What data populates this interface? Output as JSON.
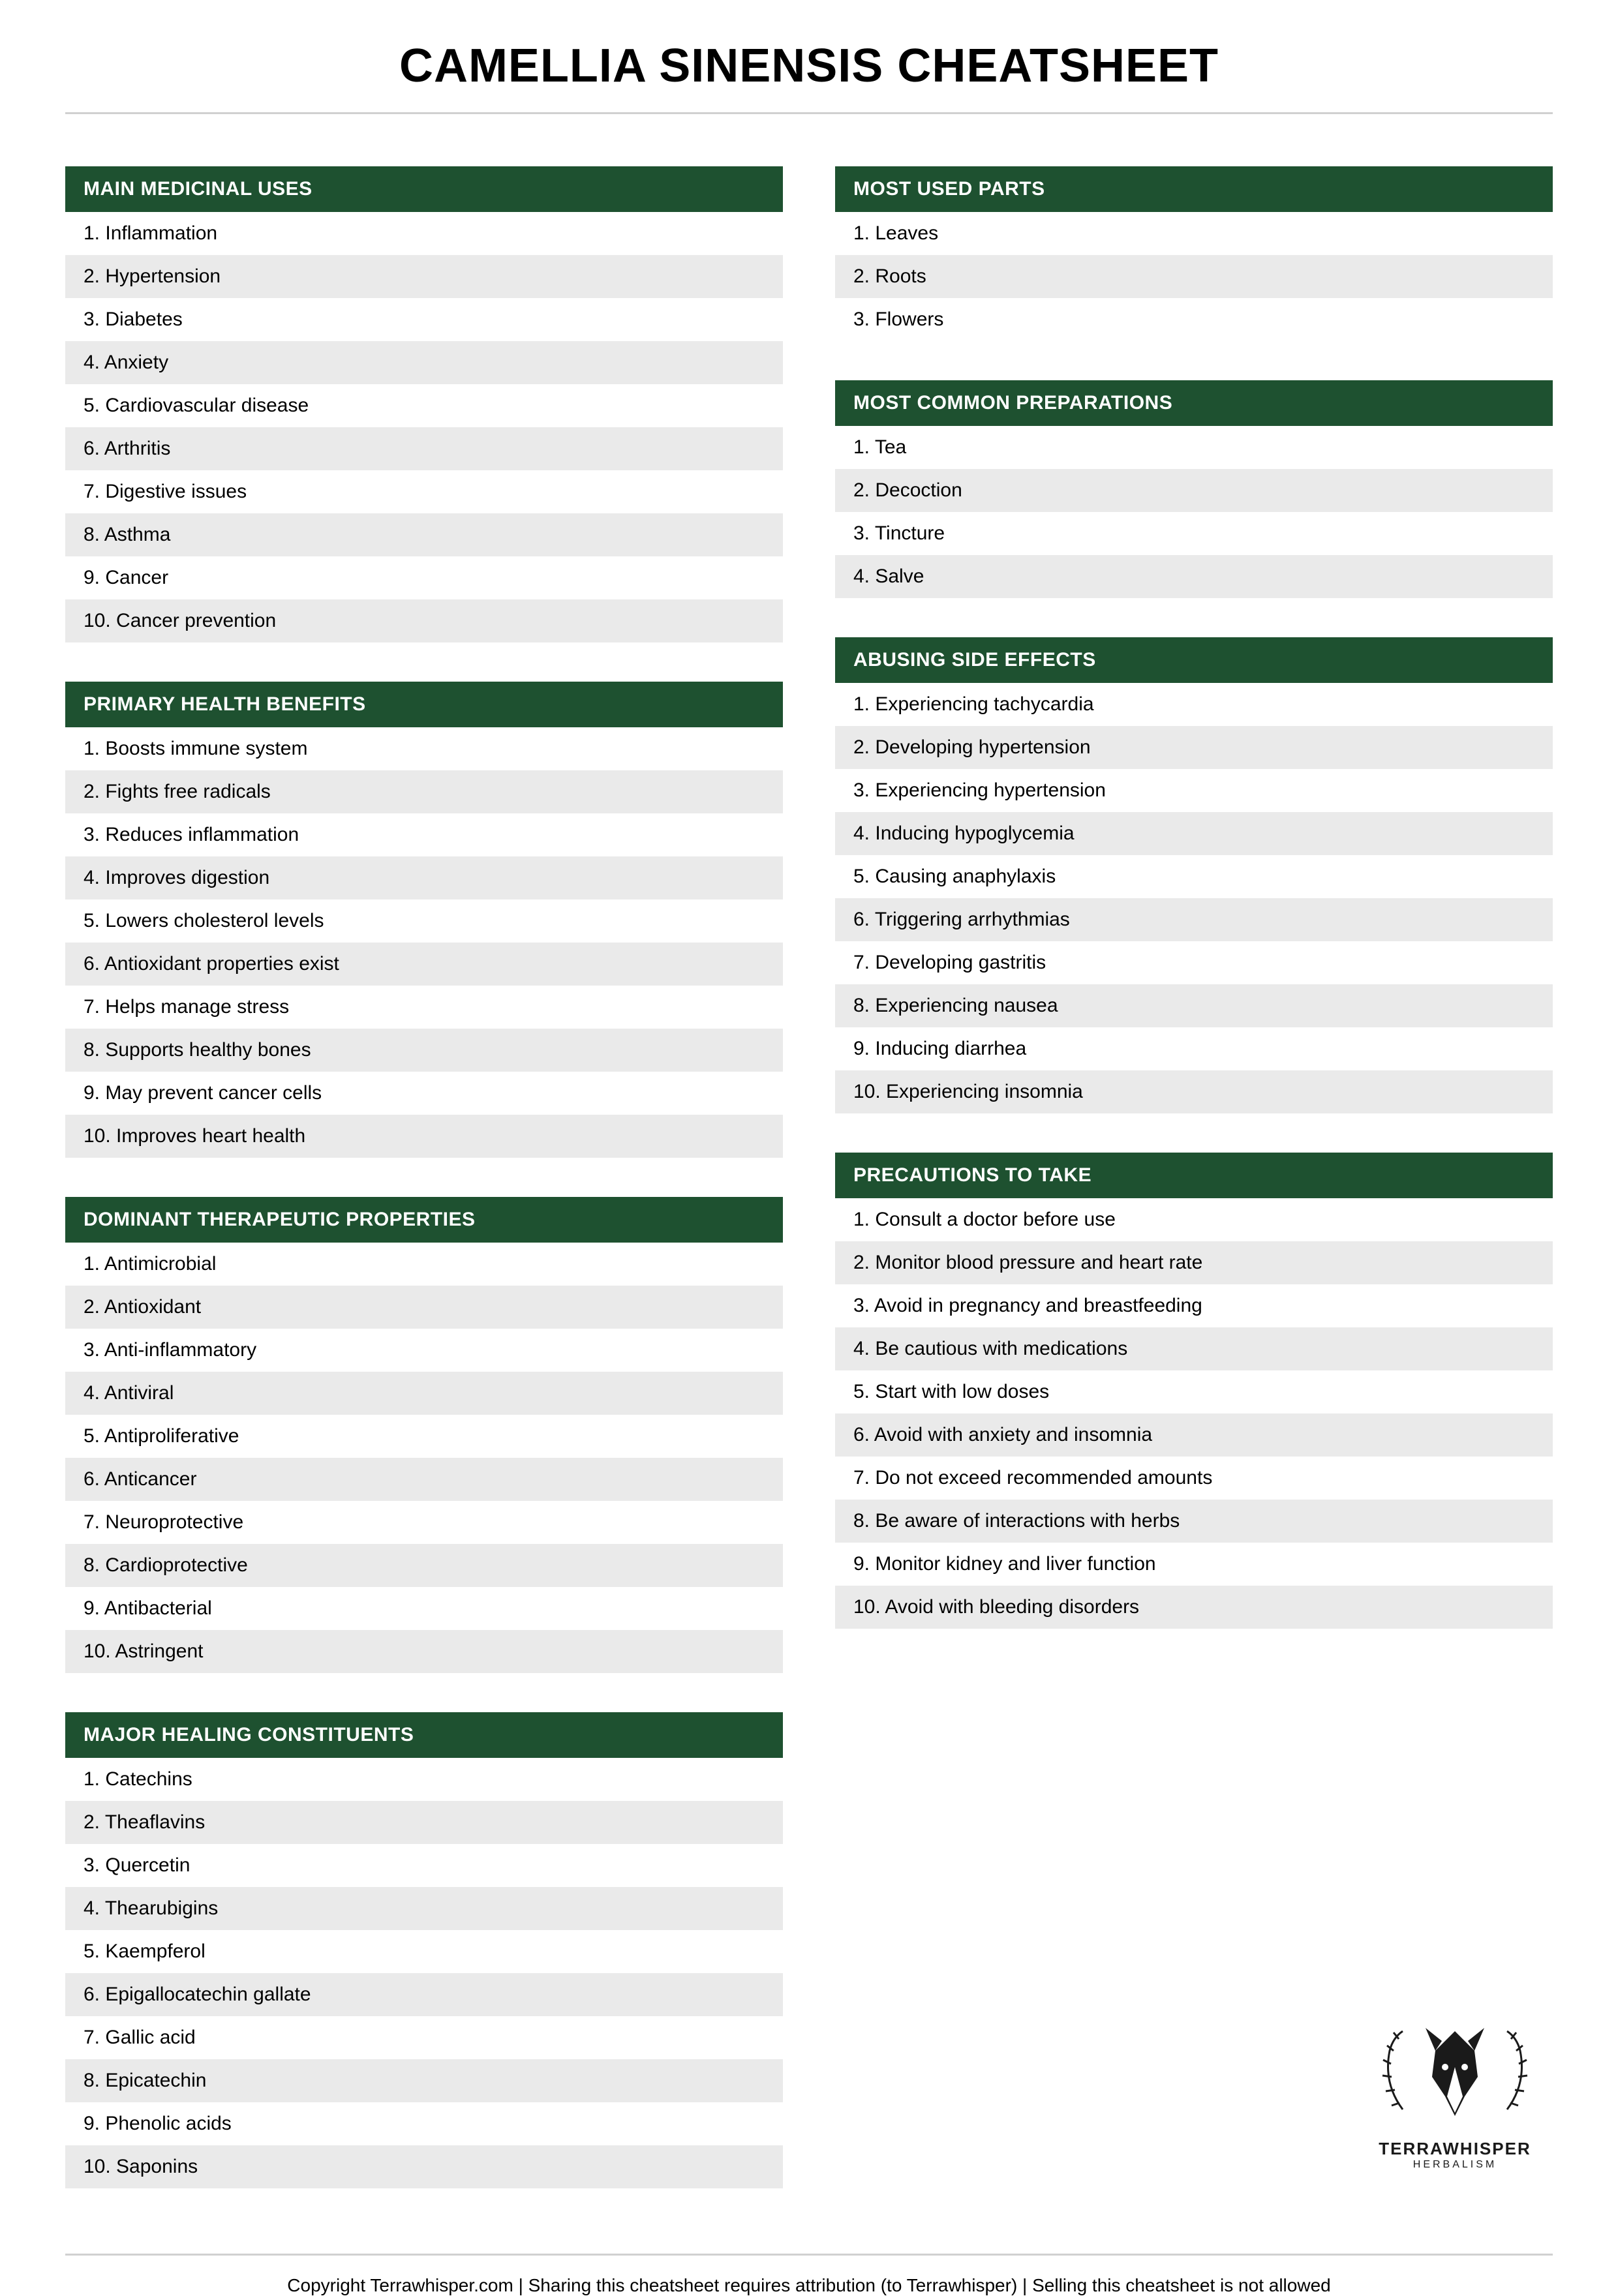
{
  "title": "CAMELLIA SINENSIS CHEATSHEET",
  "colors": {
    "header_bg": "#1e5130",
    "header_text": "#ffffff",
    "row_odd": "#ffffff",
    "row_even": "#eaeaea",
    "divider": "#d0d0d0"
  },
  "left_sections": [
    {
      "header": "MAIN MEDICINAL USES",
      "items": [
        "Inflammation",
        "Hypertension",
        "Diabetes",
        "Anxiety",
        "Cardiovascular disease",
        "Arthritis",
        "Digestive issues",
        "Asthma",
        "Cancer",
        "Cancer prevention"
      ]
    },
    {
      "header": "PRIMARY HEALTH BENEFITS",
      "items": [
        "Boosts immune system",
        "Fights free radicals",
        "Reduces inflammation",
        "Improves digestion",
        "Lowers cholesterol levels",
        "Antioxidant properties exist",
        "Helps manage stress",
        "Supports healthy bones",
        "May prevent cancer cells",
        "Improves heart health"
      ]
    },
    {
      "header": "DOMINANT THERAPEUTIC PROPERTIES",
      "items": [
        "Antimicrobial",
        "Antioxidant",
        "Anti-inflammatory",
        "Antiviral",
        "Antiproliferative",
        "Anticancer",
        "Neuroprotective",
        "Cardioprotective",
        "Antibacterial",
        "Astringent"
      ]
    },
    {
      "header": "MAJOR HEALING CONSTITUENTS",
      "items": [
        "Catechins",
        "Theaflavins",
        "Quercetin",
        "Thearubigins",
        "Kaempferol",
        "Epigallocatechin gallate",
        "Gallic acid",
        "Epicatechin",
        "Phenolic acids",
        "Saponins"
      ]
    }
  ],
  "right_sections": [
    {
      "header": "MOST USED PARTS",
      "items": [
        "Leaves",
        "Roots",
        "Flowers"
      ]
    },
    {
      "header": "MOST COMMON PREPARATIONS",
      "items": [
        "Tea",
        "Decoction",
        "Tincture",
        "Salve"
      ]
    },
    {
      "header": "ABUSING SIDE EFFECTS",
      "items": [
        "Experiencing tachycardia",
        "Developing hypertension",
        "Experiencing hypertension",
        "Inducing hypoglycemia",
        "Causing anaphylaxis",
        "Triggering arrhythmias",
        "Developing gastritis",
        "Experiencing nausea",
        "Inducing diarrhea",
        "Experiencing insomnia"
      ]
    },
    {
      "header": "PRECAUTIONS TO TAKE",
      "items": [
        "Consult a doctor before use",
        "Monitor blood pressure and heart rate",
        "Avoid in pregnancy and breastfeeding",
        "Be cautious with medications",
        "Start with low doses",
        "Avoid with anxiety and insomnia",
        "Do not exceed recommended amounts",
        "Be aware of interactions with herbs",
        "Monitor kidney and liver function",
        "Avoid with bleeding disorders"
      ]
    }
  ],
  "brand": {
    "name": "TERRAWHISPER",
    "tagline": "HERBALISM"
  },
  "footer": "Copyright Terrawhisper.com | Sharing this cheatsheet requires attribution (to Terrawhisper) | Selling this cheatsheet is not allowed"
}
